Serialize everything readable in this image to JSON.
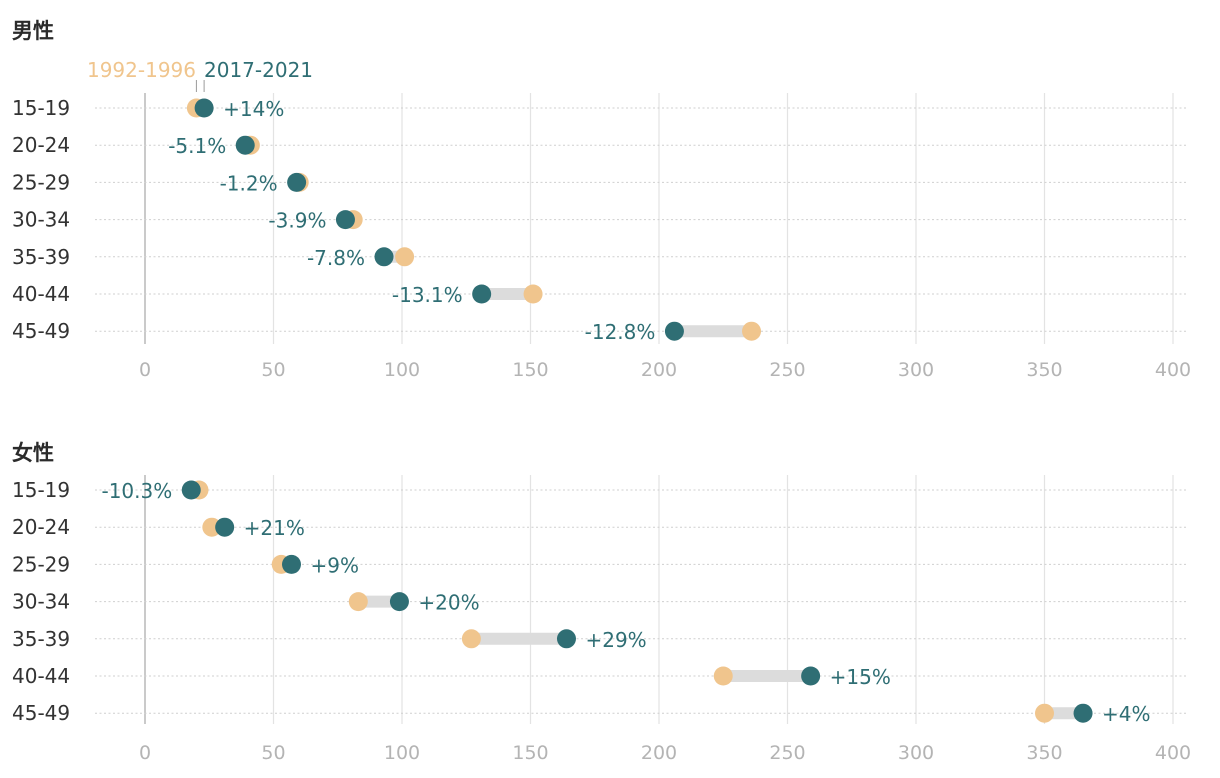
{
  "chart_data": [
    {
      "type": "dumbbell",
      "title": "男性",
      "categories": [
        "15-19",
        "20-24",
        "25-29",
        "30-34",
        "35-39",
        "40-44",
        "45-49"
      ],
      "series": [
        {
          "name": "1992-1996",
          "color": "#F0C58D",
          "values": [
            20,
            41,
            60,
            81,
            101,
            151,
            236
          ]
        },
        {
          "name": "2017-2021",
          "color": "#2F6E74",
          "values": [
            23,
            39,
            59,
            78,
            93,
            131,
            206
          ]
        }
      ],
      "change_labels": [
        "+14%",
        "-5.1%",
        "-1.2%",
        "-3.9%",
        "-7.8%",
        "-13.1%",
        "-12.8%"
      ],
      "xticks": [
        "0",
        "50",
        "100",
        "150",
        "200",
        "250",
        "300",
        "350",
        "400"
      ],
      "xlim": [
        0,
        400
      ],
      "legend": {
        "label_1992": "1992-1996",
        "label_2017": "2017-2021",
        "placement": "top-left"
      }
    },
    {
      "type": "dumbbell",
      "title": "女性",
      "categories": [
        "15-19",
        "20-24",
        "25-29",
        "30-34",
        "35-39",
        "40-44",
        "45-49"
      ],
      "series": [
        {
          "name": "1992-1996",
          "color": "#F0C58D",
          "values": [
            21,
            26,
            53,
            83,
            127,
            225,
            350
          ]
        },
        {
          "name": "2017-2021",
          "color": "#2F6E74",
          "values": [
            18,
            31,
            57,
            99,
            164,
            259,
            365
          ]
        }
      ],
      "change_labels": [
        "-10.3%",
        "+21%",
        "+9%",
        "+20%",
        "+29%",
        "+15%",
        "+4%"
      ],
      "xticks": [
        "0",
        "50",
        "100",
        "150",
        "200",
        "250",
        "300",
        "350",
        "400"
      ],
      "xlim": [
        0,
        400
      ]
    }
  ]
}
